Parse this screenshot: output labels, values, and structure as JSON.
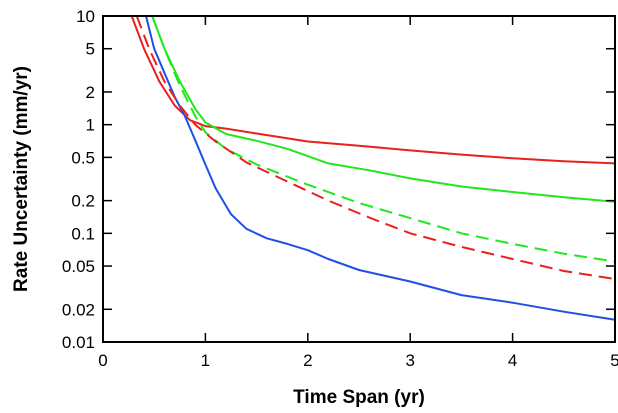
{
  "chart_data": {
    "type": "line",
    "xlabel": "Time Span (yr)",
    "ylabel": "Rate Uncertainty (mm/yr)",
    "xlim": [
      0,
      5
    ],
    "ylim": [
      0.01,
      10
    ],
    "yscale": "log",
    "grid": false,
    "x_ticks": [
      {
        "value": 0,
        "label": "0"
      },
      {
        "value": 1,
        "label": "1"
      },
      {
        "value": 2,
        "label": "2"
      },
      {
        "value": 3,
        "label": "3"
      },
      {
        "value": 4,
        "label": "4"
      },
      {
        "value": 5,
        "label": "5"
      }
    ],
    "y_ticks": [
      {
        "value": 0.01,
        "label": "0.01"
      },
      {
        "value": 0.02,
        "label": "0.02"
      },
      {
        "value": 0.05,
        "label": "0.05"
      },
      {
        "value": 0.1,
        "label": "0.1"
      },
      {
        "value": 0.2,
        "label": "0.2"
      },
      {
        "value": 0.5,
        "label": "0.5"
      },
      {
        "value": 1,
        "label": "1"
      },
      {
        "value": 2,
        "label": "2"
      },
      {
        "value": 5,
        "label": "5"
      },
      {
        "value": 10,
        "label": "10"
      }
    ],
    "series": [
      {
        "color": "#e8211d",
        "dash": "solid",
        "points": [
          [
            0.28,
            10
          ],
          [
            0.4,
            5
          ],
          [
            0.55,
            2.5
          ],
          [
            0.7,
            1.5
          ],
          [
            0.85,
            1.1
          ],
          [
            1.0,
            0.97
          ],
          [
            1.2,
            0.92
          ],
          [
            1.5,
            0.83
          ],
          [
            2.0,
            0.7
          ],
          [
            2.5,
            0.64
          ],
          [
            3.0,
            0.58
          ],
          [
            3.5,
            0.53
          ],
          [
            4.0,
            0.49
          ],
          [
            4.5,
            0.46
          ],
          [
            5.0,
            0.44
          ]
        ]
      },
      {
        "color": "#1fe81c",
        "dash": "solid",
        "points": [
          [
            0.48,
            10
          ],
          [
            0.6,
            5
          ],
          [
            0.75,
            2.5
          ],
          [
            0.9,
            1.4
          ],
          [
            1.0,
            1.05
          ],
          [
            1.2,
            0.82
          ],
          [
            1.5,
            0.71
          ],
          [
            1.8,
            0.6
          ],
          [
            2.2,
            0.44
          ],
          [
            2.6,
            0.38
          ],
          [
            3.0,
            0.32
          ],
          [
            3.5,
            0.27
          ],
          [
            4.0,
            0.24
          ],
          [
            4.5,
            0.215
          ],
          [
            5.0,
            0.195
          ]
        ]
      },
      {
        "color": "#1e50e6",
        "dash": "solid",
        "points": [
          [
            0.42,
            10
          ],
          [
            0.5,
            5
          ],
          [
            0.6,
            3
          ],
          [
            0.7,
            1.8
          ],
          [
            0.8,
            1.2
          ],
          [
            0.9,
            0.72
          ],
          [
            1.0,
            0.43
          ],
          [
            1.1,
            0.26
          ],
          [
            1.25,
            0.15
          ],
          [
            1.4,
            0.11
          ],
          [
            1.6,
            0.09
          ],
          [
            1.8,
            0.08
          ],
          [
            2.0,
            0.07
          ],
          [
            2.2,
            0.058
          ],
          [
            2.5,
            0.046
          ],
          [
            3.0,
            0.036
          ],
          [
            3.5,
            0.027
          ],
          [
            4.0,
            0.023
          ],
          [
            4.5,
            0.019
          ],
          [
            5.0,
            0.016
          ]
        ]
      },
      {
        "color": "#1fe81c",
        "dash": "dashed",
        "points": [
          [
            0.48,
            10
          ],
          [
            0.6,
            5
          ],
          [
            0.75,
            2.3
          ],
          [
            0.9,
            1.2
          ],
          [
            1.0,
            0.85
          ],
          [
            1.2,
            0.6
          ],
          [
            1.5,
            0.43
          ],
          [
            2.0,
            0.28
          ],
          [
            2.5,
            0.19
          ],
          [
            3.0,
            0.138
          ],
          [
            3.5,
            0.1
          ],
          [
            4.0,
            0.08
          ],
          [
            4.5,
            0.065
          ],
          [
            5.0,
            0.055
          ]
        ]
      },
      {
        "color": "#e8211d",
        "dash": "dashed",
        "points": [
          [
            0.33,
            10
          ],
          [
            0.45,
            5
          ],
          [
            0.6,
            2.5
          ],
          [
            0.75,
            1.5
          ],
          [
            0.9,
            1.0
          ],
          [
            1.1,
            0.7
          ],
          [
            1.4,
            0.45
          ],
          [
            1.8,
            0.3
          ],
          [
            2.2,
            0.2
          ],
          [
            2.6,
            0.14
          ],
          [
            3.0,
            0.1
          ],
          [
            3.5,
            0.075
          ],
          [
            4.0,
            0.058
          ],
          [
            4.5,
            0.045
          ],
          [
            5.0,
            0.038
          ]
        ]
      }
    ]
  }
}
